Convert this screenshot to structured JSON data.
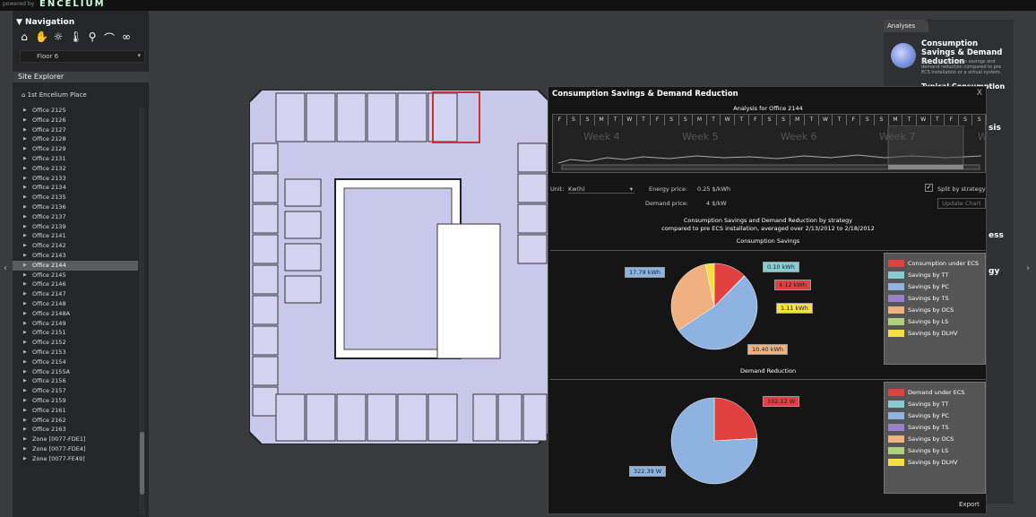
{
  "brand": {
    "powered_by": "powered by",
    "logo": "ENCELIUM"
  },
  "navigation": {
    "header": "▼ Navigation",
    "icons": [
      "home-icon",
      "hand-icon",
      "lightbulb-icon",
      "thermometer-icon",
      "magnify-icon",
      "lamp-icon",
      "binoculars-icon"
    ],
    "floor_select": "Floor 6"
  },
  "site_explorer": {
    "header": "Site Explorer",
    "site": "1st Encelium Place",
    "items": [
      "Office 2125",
      "Office 2126",
      "Office 2127",
      "Office 2128",
      "Office 2129",
      "Office 2131",
      "Office 2132",
      "Office 2133",
      "Office 2134",
      "Office 2135",
      "Office 2136",
      "Office 2137",
      "Office 2139",
      "Office 2141",
      "Office 2142",
      "Office 2143",
      "Office 2144",
      "Office 2145",
      "Office 2146",
      "Office 2147",
      "Office 2148",
      "Office 2148A",
      "Office 2149",
      "Office 2151",
      "Office 2152",
      "Office 2153",
      "Office 2154",
      "Office 2155A",
      "Office 2156",
      "Office 2157",
      "Office 2159",
      "Office 2161",
      "Office 2162",
      "Office 2163",
      "Zone [0077-FDE1]",
      "Zone [0077-FDE4]",
      "Zone [0077-FE49]"
    ],
    "selected_index": 16
  },
  "analyses": {
    "tab": "Analyses",
    "item_title": "Consumption Savings & Demand Reduction",
    "item_desc": "Typical consumption savings and demand reduction compared to pre ECS installation or a virtual system.",
    "peek1": "Typical Consumption",
    "peek2": "sis",
    "peek3": "ess",
    "peek4": "gy"
  },
  "dialog": {
    "title": "Consumption Savings & Demand Reduction",
    "close": "X",
    "analysis_title": "Analysis for Office 2144",
    "days": [
      "F",
      "S",
      "S",
      "M",
      "T",
      "W",
      "T",
      "F",
      "S",
      "S",
      "M",
      "T",
      "W",
      "T",
      "F",
      "S",
      "S",
      "M",
      "T",
      "W",
      "T",
      "F",
      "S",
      "S",
      "M",
      "T",
      "W",
      "T",
      "F",
      "S",
      "S"
    ],
    "weeks": [
      "Week 4",
      "Week 5",
      "Week 6",
      "Week 7",
      "W"
    ],
    "unit_label": "Unit:",
    "unit_value": "Kw(h)",
    "energy_price_label": "Energy price:",
    "energy_price_value": "0.25 $/kWh",
    "demand_price_label": "Demand price:",
    "demand_price_value": "4 $/kW",
    "split_label": "Split by strategy",
    "update_button": "Update Chart",
    "subtitle1": "Consumption Savings and Demand Reduction by strategy",
    "subtitle2": "compared to pre ECS installation, averaged over 2/13/2012 to 2/18/2012",
    "export": "Export"
  },
  "chart_data": [
    {
      "type": "pie",
      "title": "Consumption Savings",
      "slices": [
        {
          "name": "Consumption under ECS",
          "value": 4.12,
          "label": "4.12 kWh",
          "color": "#e04040"
        },
        {
          "name": "Savings by TT",
          "value": 0.1,
          "label": "0.10 kWh",
          "color": "#88ccd0"
        },
        {
          "name": "Savings by PC",
          "value": 17.79,
          "label": "17.79 kWh",
          "color": "#8fb3e0"
        },
        {
          "name": "Savings by TS",
          "value": 0,
          "label": "",
          "color": "#9a80c8"
        },
        {
          "name": "Savings by OCS",
          "value": 10.4,
          "label": "10.40 kWh",
          "color": "#f0b080"
        },
        {
          "name": "Savings by LS",
          "value": 0,
          "label": "",
          "color": "#b0d080"
        },
        {
          "name": "Savings by DLHV",
          "value": 1.11,
          "label": "1.11 kWh",
          "color": "#f4e040"
        }
      ]
    },
    {
      "type": "pie",
      "title": "Demand Reduction",
      "slices": [
        {
          "name": "Demand under ECS",
          "value": 102.12,
          "label": "102.12 W",
          "color": "#e04040"
        },
        {
          "name": "Savings by TT",
          "value": 0,
          "label": "",
          "color": "#88ccd0"
        },
        {
          "name": "Savings by PC",
          "value": 322.39,
          "label": "322.39 W",
          "color": "#8fb3e0"
        },
        {
          "name": "Savings by TS",
          "value": 0,
          "label": "",
          "color": "#9a80c8"
        },
        {
          "name": "Savings by OCS",
          "value": 0,
          "label": "",
          "color": "#f0b080"
        },
        {
          "name": "Savings by LS",
          "value": 0,
          "label": "",
          "color": "#b0d080"
        },
        {
          "name": "Savings by DLHV",
          "value": 0,
          "label": "",
          "color": "#f4e040"
        }
      ]
    }
  ]
}
